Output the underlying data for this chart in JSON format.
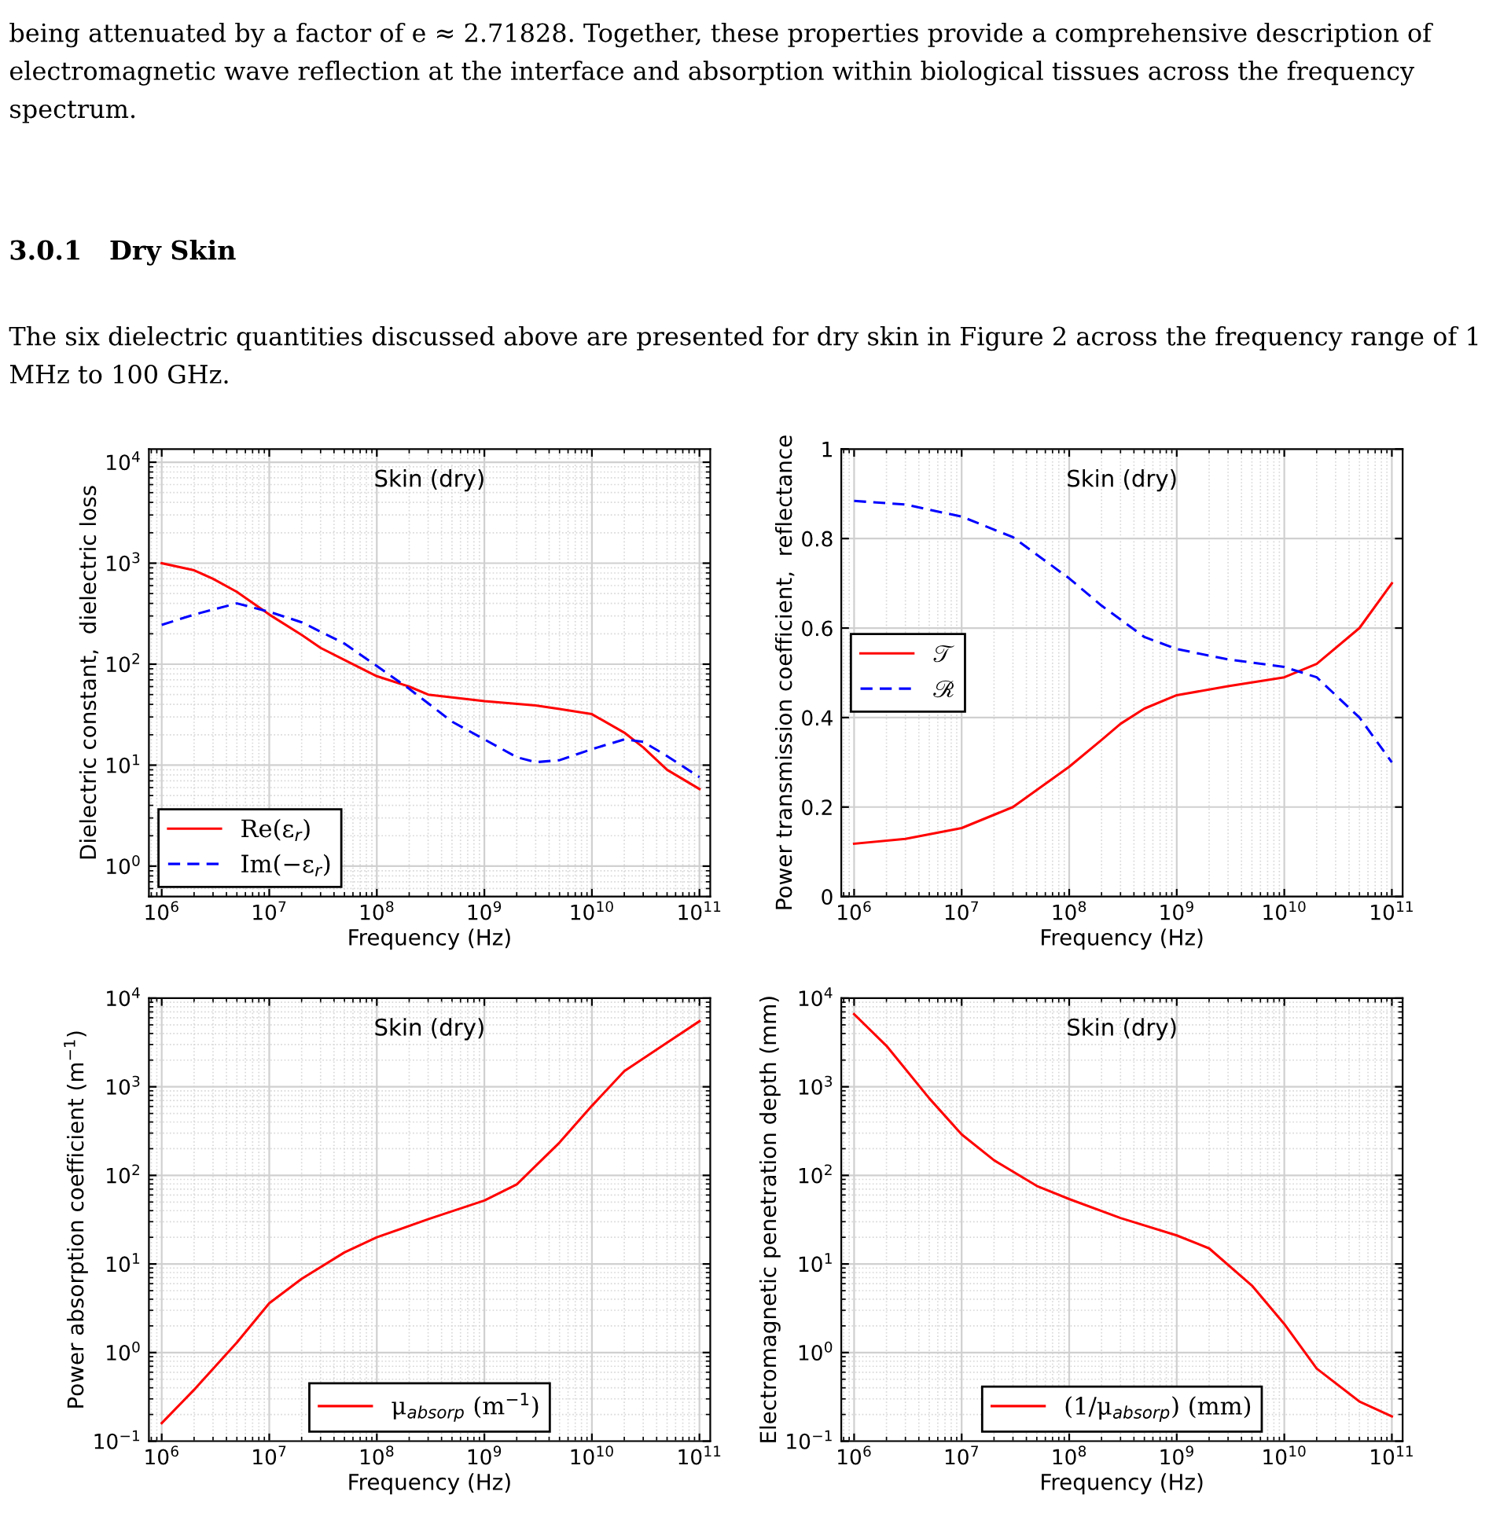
{
  "chart_data": [
    {
      "type": "line",
      "title": "Skin (dry)",
      "xlabel": "Frequency (Hz)",
      "ylabel": "Dielectric constant,  dielectric loss",
      "annotations": [
        "being attenuated by a factor of e ≈ 2.71828. Together, these properties provide a comprehensive description of electromagnetic wave reflection at the interface and absorption within biological tissues across the frequency spectrum.",
        "3.0.1   Dry Skin",
        "The six dielectric quantities discussed above are presented for dry skin in Figure 2 across the frequency range of 1 MHz to 100 GHz."
      ],
      "log": "xy",
      "grid": true,
      "legend": "bottom left",
      "xlim": [
        760000,
        126000000000
      ],
      "ylim": [
        0.5,
        13500
      ],
      "xticks": [
        {
          "value": 1000000,
          "label": "10$^{6}$"
        },
        {
          "value": 10000000,
          "label": "10$^{7}$"
        },
        {
          "value": 100000000,
          "label": "10$^{8}$"
        },
        {
          "value": 1000000000,
          "label": "10$^{9}$"
        },
        {
          "value": 10000000000,
          "label": "10$^{10}$"
        },
        {
          "value": 100000000000,
          "label": "10$^{11}$"
        }
      ],
      "yticks": [
        {
          "value": 1,
          "label": "10$^{0}$"
        },
        {
          "value": 10,
          "label": "10$^{1}$"
        },
        {
          "value": 100,
          "label": "10$^{2}$"
        },
        {
          "value": 1000,
          "label": "10$^{3}$"
        },
        {
          "value": 10000,
          "label": "10$^{4}$"
        }
      ],
      "series": [
        {
          "name": "Re(ε$_{r}$)",
          "color": "#ff0000",
          "line_style": "solid",
          "x": [
            1000000.0,
            2000000.0,
            3000000.0,
            5000000.0,
            10000000.0,
            20000000.0,
            30000000.0,
            50000000.0,
            100000000.0,
            200000000.0,
            300000000.0,
            1000000000.0,
            3000000000.0,
            5000000000.0,
            10000000000.0,
            20000000000.0,
            30000000000.0,
            50000000000.0,
            100000000000.0
          ],
          "values": [
            1000,
            850,
            700,
            520,
            310,
            195,
            145,
            110,
            76,
            60,
            50,
            43,
            39,
            36,
            32,
            21,
            15,
            9,
            5.8
          ]
        },
        {
          "name": "Im(−ε$_{r}$)",
          "color": "#0000ff",
          "line_style": "dashed",
          "x": [
            1000000.0,
            2000000.0,
            5000000.0,
            10000000.0,
            20000000.0,
            50000000.0,
            100000000.0,
            200000000.0,
            500000000.0,
            1000000000.0,
            2000000000.0,
            3000000000.0,
            5000000000.0,
            10000000000.0,
            20000000000.0,
            30000000000.0,
            50000000000.0,
            100000000000.0
          ],
          "values": [
            245,
            310,
            400,
            330,
            260,
            160,
            96,
            57,
            27,
            18,
            12,
            10.7,
            11.2,
            14.4,
            18,
            17,
            12.3,
            7.6
          ]
        }
      ]
    },
    {
      "type": "line",
      "title": "Skin (dry)",
      "xlabel": "Frequency (Hz)",
      "ylabel": "Power transmission coefficient,  reflectance",
      "log": "x",
      "grid": true,
      "legend": "left",
      "xlim": [
        760000,
        126000000000
      ],
      "ylim": [
        0,
        1
      ],
      "xticks": [
        {
          "value": 1000000,
          "label": "10$^{6}$"
        },
        {
          "value": 10000000,
          "label": "10$^{7}$"
        },
        {
          "value": 100000000,
          "label": "10$^{8}$"
        },
        {
          "value": 1000000000,
          "label": "10$^{9}$"
        },
        {
          "value": 10000000000,
          "label": "10$^{10}$"
        },
        {
          "value": 100000000000,
          "label": "10$^{11}$"
        }
      ],
      "yticks": [
        0,
        0.2,
        0.4,
        0.6,
        0.8,
        1
      ],
      "series": [
        {
          "name": "𝒯",
          "color": "#ff0000",
          "line_style": "solid",
          "x": [
            1000000.0,
            3000000.0,
            10000000.0,
            30000000.0,
            100000000.0,
            200000000.0,
            300000000.0,
            500000000.0,
            1000000000.0,
            3000000000.0,
            10000000000.0,
            20000000000.0,
            50000000000.0,
            100000000000.0
          ],
          "values": [
            0.118,
            0.129,
            0.153,
            0.2,
            0.29,
            0.35,
            0.386,
            0.42,
            0.45,
            0.47,
            0.49,
            0.52,
            0.6,
            0.7
          ]
        },
        {
          "name": "ℛ",
          "color": "#0000ff",
          "line_style": "dashed",
          "x": [
            1000000.0,
            3000000.0,
            10000000.0,
            30000000.0,
            100000000.0,
            200000000.0,
            500000000.0,
            1000000000.0,
            3000000000.0,
            10000000000.0,
            20000000000.0,
            50000000000.0,
            100000000000.0
          ],
          "values": [
            0.884,
            0.876,
            0.849,
            0.803,
            0.711,
            0.65,
            0.58,
            0.553,
            0.53,
            0.513,
            0.49,
            0.4,
            0.3
          ]
        }
      ]
    },
    {
      "type": "line",
      "title": "Skin (dry)",
      "xlabel": "Frequency (Hz)",
      "ylabel": "Power absorption coefficient (m$^{−1}$)",
      "log": "xy",
      "grid": true,
      "legend": "bottom",
      "xlim": [
        760000,
        126000000000
      ],
      "ylim": [
        0.1,
        10000
      ],
      "xticks": [
        {
          "value": 1000000,
          "label": "10$^{6}$"
        },
        {
          "value": 10000000,
          "label": "10$^{7}$"
        },
        {
          "value": 100000000,
          "label": "10$^{8}$"
        },
        {
          "value": 1000000000,
          "label": "10$^{9}$"
        },
        {
          "value": 10000000000,
          "label": "10$^{10}$"
        },
        {
          "value": 100000000000,
          "label": "10$^{11}$"
        }
      ],
      "yticks": [
        {
          "value": 0.1,
          "label": "10$^{−1}$"
        },
        {
          "value": 1,
          "label": "10$^{0}$"
        },
        {
          "value": 10,
          "label": "10$^{1}$"
        },
        {
          "value": 100,
          "label": "10$^{2}$"
        },
        {
          "value": 1000,
          "label": "10$^{3}$"
        },
        {
          "value": 10000,
          "label": "10$^{4}$"
        }
      ],
      "series": [
        {
          "name": "μ$_{absorp}$ (m$^{−1}$)",
          "color": "#ff0000",
          "line_style": "solid",
          "x": [
            1000000.0,
            2000000.0,
            5000000.0,
            10000000.0,
            20000000.0,
            50000000.0,
            100000000.0,
            300000000.0,
            1000000000.0,
            2000000000.0,
            5000000000.0,
            10000000000.0,
            20000000000.0,
            50000000000.0,
            100000000000.0
          ],
          "values": [
            0.16,
            0.38,
            1.3,
            3.6,
            6.8,
            13.5,
            20,
            32,
            52,
            79,
            235,
            610,
            1500,
            3150,
            5500
          ]
        }
      ]
    },
    {
      "type": "line",
      "title": "Skin (dry)",
      "xlabel": "Frequency (Hz)",
      "ylabel": "Electromagnetic penetration depth (mm)",
      "log": "xy",
      "grid": true,
      "legend": "bottom",
      "xlim": [
        760000,
        126000000000
      ],
      "ylim": [
        0.1,
        10000
      ],
      "xticks": [
        {
          "value": 1000000,
          "label": "10$^{6}$"
        },
        {
          "value": 10000000,
          "label": "10$^{7}$"
        },
        {
          "value": 100000000,
          "label": "10$^{8}$"
        },
        {
          "value": 1000000000,
          "label": "10$^{9}$"
        },
        {
          "value": 10000000000,
          "label": "10$^{10}$"
        },
        {
          "value": 100000000000,
          "label": "10$^{11}$"
        }
      ],
      "yticks": [
        {
          "value": 0.1,
          "label": "10$^{−1}$"
        },
        {
          "value": 1,
          "label": "10$^{0}$"
        },
        {
          "value": 10,
          "label": "10$^{1}$"
        },
        {
          "value": 100,
          "label": "10$^{2}$"
        },
        {
          "value": 1000,
          "label": "10$^{3}$"
        },
        {
          "value": 10000,
          "label": "10$^{4}$"
        }
      ],
      "series": [
        {
          "name": "(1/μ$_{absorp}$) (mm)",
          "color": "#ff0000",
          "line_style": "solid",
          "x": [
            1000000.0,
            2000000.0,
            5000000.0,
            10000000.0,
            20000000.0,
            50000000.0,
            100000000.0,
            300000000.0,
            1000000000.0,
            2000000000.0,
            5000000000.0,
            10000000000.0,
            20000000000.0,
            50000000000.0,
            100000000000.0
          ],
          "values": [
            6600,
            2900,
            740,
            290,
            148,
            76,
            54,
            33,
            21,
            15,
            5.7,
            2.1,
            0.66,
            0.28,
            0.19
          ]
        }
      ]
    }
  ]
}
